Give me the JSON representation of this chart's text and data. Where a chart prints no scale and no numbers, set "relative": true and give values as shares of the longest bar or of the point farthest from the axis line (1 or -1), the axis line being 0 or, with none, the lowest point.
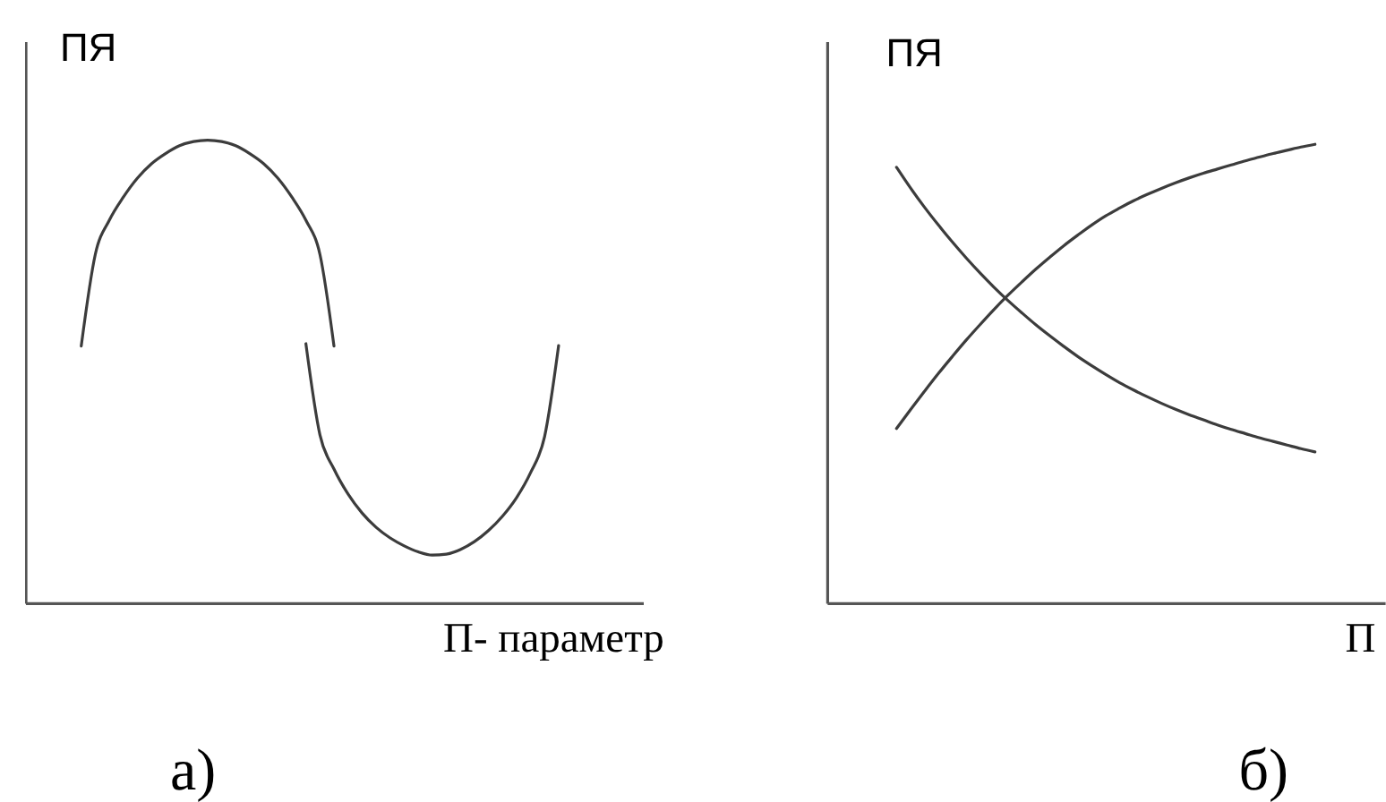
{
  "chart_data": [
    {
      "type": "line",
      "title": "а)",
      "xlabel": "П- параметр",
      "ylabel": "ПЯ",
      "relative": true,
      "categories": [
        null,
        null,
        null,
        null,
        null,
        null,
        null,
        null,
        null,
        null,
        null,
        null,
        null,
        null,
        null,
        null,
        null,
        null,
        null,
        null,
        null,
        null,
        null,
        null,
        null,
        null,
        null,
        null,
        null,
        null,
        null,
        null,
        null,
        null,
        null,
        null,
        null,
        null,
        null,
        null,
        null,
        null,
        null,
        null,
        null
      ],
      "series": [
        {
          "color": "#3c3c3c",
          "values": [
            null,
            null,
            null,
            null,
            0.555,
            0.753,
            0.827,
            0.877,
            0.918,
            0.949,
            0.971,
            0.988,
            0.997,
            1,
            0.997,
            0.988,
            0.971,
            0.949,
            0.918,
            0.877,
            0.827,
            0.753,
            0.555,
            null,
            null,
            null,
            null,
            null,
            null,
            null,
            null,
            null,
            null,
            null,
            null,
            null,
            null,
            null,
            null,
            null,
            null,
            null,
            null,
            null,
            null
          ]
        },
        {
          "color": "#3c3c3c",
          "values": [
            null,
            null,
            null,
            null,
            null,
            null,
            null,
            null,
            null,
            null,
            null,
            null,
            null,
            null,
            null,
            null,
            null,
            null,
            null,
            null,
            0.56,
            0.363,
            0.289,
            0.235,
            0.194,
            0.163,
            0.14,
            0.123,
            0.11,
            0.103,
            0.105,
            0.115,
            0.132,
            0.156,
            0.187,
            0.227,
            0.281,
            0.359,
            0.556,
            null,
            null,
            null,
            null,
            null,
            null
          ]
        }
      ]
    },
    {
      "type": "line",
      "title": "б)",
      "xlabel": "П",
      "ylabel": "ПЯ",
      "relative": true,
      "categories": [
        null,
        null,
        null,
        null,
        null,
        null,
        null,
        null,
        null,
        null,
        null,
        null,
        null,
        null,
        null,
        null,
        null,
        null,
        null,
        null,
        null,
        null,
        null,
        null,
        null,
        null,
        null,
        null,
        null,
        null,
        null,
        null,
        null,
        null,
        null,
        null,
        null,
        null,
        null,
        null,
        null
      ],
      "series": [
        {
          "color": "#3c3c3c",
          "values": [
            null,
            null,
            null,
            null,
            null,
            0.38,
            0.421,
            0.461,
            0.5,
            0.537,
            0.573,
            0.607,
            0.64,
            0.671,
            0.7,
            0.728,
            0.754,
            0.779,
            0.802,
            0.824,
            0.844,
            0.861,
            0.877,
            0.891,
            0.904,
            0.916,
            0.927,
            0.937,
            0.946,
            0.955,
            0.964,
            0.972,
            0.98,
            0.987,
            0.994,
            1,
            null,
            null,
            null,
            null,
            null
          ]
        },
        {
          "color": "#3c3c3c",
          "values": [
            null,
            null,
            null,
            null,
            null,
            0.95,
            0.905,
            0.863,
            0.824,
            0.787,
            0.752,
            0.719,
            0.688,
            0.659,
            0.632,
            0.606,
            0.582,
            0.559,
            0.537,
            0.517,
            0.498,
            0.48,
            0.464,
            0.449,
            0.435,
            0.422,
            0.41,
            0.399,
            0.388,
            0.378,
            0.369,
            0.36,
            0.352,
            0.344,
            0.336,
            0.329,
            null,
            null,
            null,
            null,
            null
          ]
        }
      ]
    }
  ]
}
